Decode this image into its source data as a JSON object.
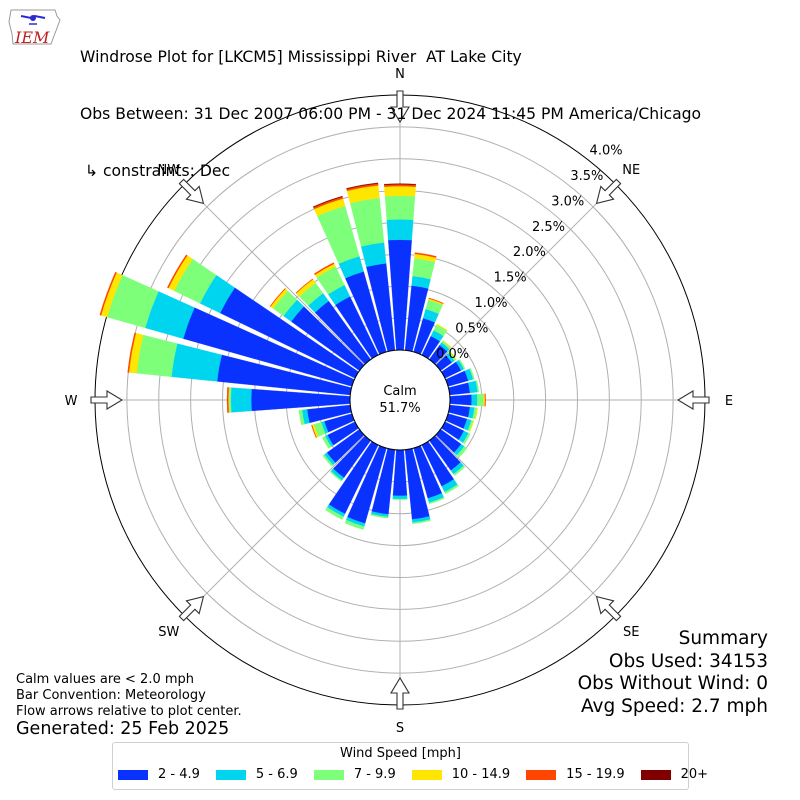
{
  "logo_text": "IEM",
  "title": {
    "line1": "Windrose Plot for [LKCM5] Mississippi River  AT Lake City",
    "line2": "Obs Between: 31 Dec 2007 06:00 PM - 31 Dec 2024 11:45 PM America/Chicago",
    "line3": " ↳ constraints: Dec"
  },
  "calm": {
    "label": "Calm",
    "value": "51.7%"
  },
  "notes": {
    "line1": "Calm values are < 2.0 mph",
    "line2": "Bar Convention: Meteorology",
    "line3": "Flow arrows relative to plot center."
  },
  "generated": "Generated: 25 Feb 2025",
  "summary": {
    "title": "Summary",
    "obs_used": "Obs Used: 34153",
    "obs_without_wind": "Obs Without Wind: 0",
    "avg_speed": "Avg Speed: 2.7 mph"
  },
  "legend": {
    "title": "Wind Speed [mph]",
    "items": [
      {
        "label": "2 - 4.9",
        "color": "#0a32ff"
      },
      {
        "label": "5 - 6.9",
        "color": "#00d5f0"
      },
      {
        "label": "7 - 9.9",
        "color": "#7dff7a"
      },
      {
        "label": "10 - 14.9",
        "color": "#ffe600"
      },
      {
        "label": "15 - 19.9",
        "color": "#ff4500"
      },
      {
        "label": "20+",
        "color": "#800000"
      }
    ]
  },
  "chart_data": {
    "type": "windrose",
    "radial_ticks": [
      "0.0%",
      "0.5%",
      "1.0%",
      "1.5%",
      "2.0%",
      "2.5%",
      "3.0%",
      "3.5%",
      "4.0%"
    ],
    "rmax_percent": 4.0,
    "compass_labels": [
      "N",
      "NE",
      "E",
      "SE",
      "S",
      "SW",
      "W",
      "NW"
    ],
    "direction_degrees": [
      0,
      10,
      20,
      30,
      40,
      50,
      60,
      70,
      80,
      90,
      100,
      110,
      120,
      130,
      140,
      150,
      160,
      170,
      180,
      190,
      200,
      210,
      220,
      230,
      240,
      250,
      260,
      270,
      280,
      290,
      300,
      310,
      320,
      330,
      340,
      350
    ],
    "series": [
      {
        "name": "2 - 4.9",
        "color": "#0a32ff",
        "values": [
          1.73,
          1.02,
          0.55,
          0.33,
          0.28,
          0.22,
          0.28,
          0.33,
          0.32,
          0.34,
          0.32,
          0.31,
          0.33,
          0.4,
          0.58,
          0.72,
          0.82,
          1.1,
          0.72,
          1.02,
          1.23,
          1.2,
          0.72,
          0.63,
          0.48,
          0.45,
          0.68,
          1.55,
          2.1,
          2.75,
          2.35,
          1.32,
          1.13,
          1.02,
          1.31,
          1.37
        ]
      },
      {
        "name": "5 - 6.9",
        "color": "#00d5f0",
        "values": [
          0.32,
          0.15,
          0.15,
          0.1,
          0.05,
          0.05,
          0.05,
          0.08,
          0.12,
          0.09,
          0.07,
          0.07,
          0.08,
          0.06,
          0.07,
          0.1,
          0.07,
          0.05,
          0.05,
          0.04,
          0.05,
          0.05,
          0.05,
          0.05,
          0.04,
          0.05,
          0.08,
          0.32,
          0.72,
          0.62,
          0.35,
          0.15,
          0.15,
          0.2,
          0.25,
          0.33
        ]
      },
      {
        "name": "7 - 9.9",
        "color": "#7dff7a",
        "values": [
          0.37,
          0.28,
          0.15,
          0.1,
          0.03,
          0.03,
          0.02,
          0.02,
          0.02,
          0.1,
          0.04,
          0.03,
          0.03,
          0.05,
          0.03,
          0.03,
          0.02,
          0.02,
          0.01,
          0.02,
          0.05,
          0.05,
          0.02,
          0.03,
          0.05,
          0.12,
          0.05,
          0.03,
          0.55,
          0.62,
          0.45,
          0.2,
          0.2,
          0.32,
          0.82,
          0.7
        ]
      },
      {
        "name": "10 - 14.9",
        "color": "#ffe600",
        "values": [
          0.15,
          0.07,
          0.02,
          0.01,
          0.01,
          0.01,
          0.0,
          0.0,
          0.0,
          0.02,
          0.01,
          0.01,
          0.0,
          0.0,
          0.0,
          0.0,
          0.0,
          0.0,
          0.0,
          0.0,
          0.0,
          0.0,
          0.0,
          0.0,
          0.0,
          0.03,
          0.0,
          0.01,
          0.12,
          0.1,
          0.1,
          0.05,
          0.07,
          0.05,
          0.12,
          0.2
        ]
      },
      {
        "name": "15 - 19.9",
        "color": "#ff4500",
        "values": [
          0.03,
          0.02,
          0.01,
          0.0,
          0.0,
          0.0,
          0.0,
          0.0,
          0.0,
          0.01,
          0.0,
          0.0,
          0.0,
          0.0,
          0.0,
          0.0,
          0.0,
          0.0,
          0.0,
          0.0,
          0.0,
          0.0,
          0.0,
          0.0,
          0.0,
          0.01,
          0.0,
          0.02,
          0.02,
          0.02,
          0.02,
          0.01,
          0.01,
          0.02,
          0.03,
          0.03
        ]
      },
      {
        "name": "20+",
        "color": "#800000",
        "values": [
          0.01,
          0.0,
          0.0,
          0.0,
          0.0,
          0.0,
          0.0,
          0.0,
          0.0,
          0.0,
          0.0,
          0.0,
          0.0,
          0.0,
          0.0,
          0.0,
          0.0,
          0.0,
          0.0,
          0.0,
          0.0,
          0.0,
          0.0,
          0.0,
          0.0,
          0.0,
          0.0,
          0.0,
          0.0,
          0.0,
          0.0,
          0.0,
          0.0,
          0.0,
          0.01,
          0.01
        ]
      }
    ]
  }
}
